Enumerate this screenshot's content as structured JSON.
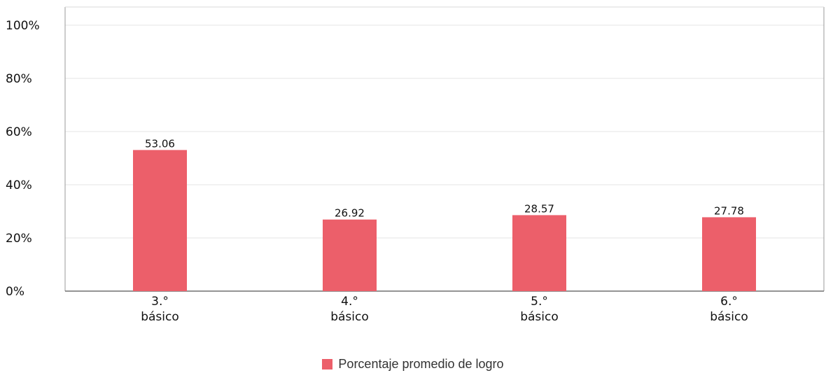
{
  "chart_data": {
    "type": "bar",
    "categories": [
      [
        "3.°",
        "básico"
      ],
      [
        "4.°",
        "básico"
      ],
      [
        "5.°",
        "básico"
      ],
      [
        "6.°",
        "básico"
      ]
    ],
    "series": [
      {
        "name": "Porcentaje promedio de logro",
        "values": [
          53.06,
          26.92,
          28.57,
          27.78
        ],
        "data_labels": [
          "53.06",
          "26.92",
          "28.57",
          "27.78"
        ],
        "color": "#ec5f6a"
      }
    ],
    "yticks": [
      "0%",
      "20%",
      "40%",
      "60%",
      "80%",
      "100%"
    ],
    "ylim": [
      0,
      100
    ],
    "grid": true,
    "legend_position": "bottom-center"
  }
}
